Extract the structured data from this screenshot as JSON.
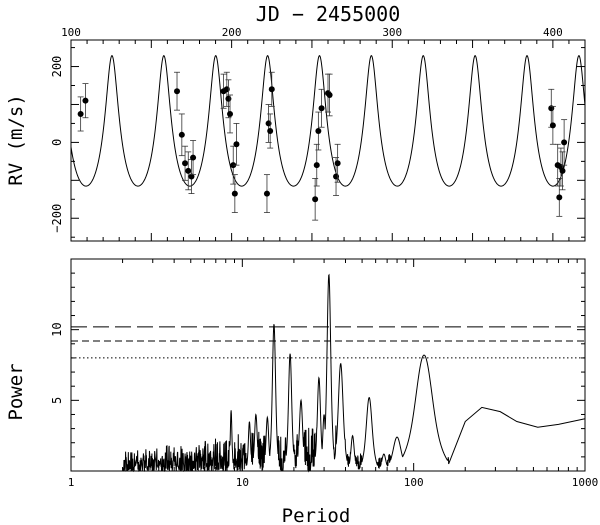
{
  "chart_data": [
    {
      "type": "scatter",
      "title": "JD − 2455000",
      "xlabel": "JD − 2455000",
      "ylabel": "RV (m/s)",
      "xlim": [
        100,
        420
      ],
      "ylim": [
        -260,
        270
      ],
      "x_ticks": [
        {
          "value": 100,
          "label": "100"
        },
        {
          "value": 200,
          "label": "200"
        },
        {
          "value": 300,
          "label": "300"
        },
        {
          "value": 400,
          "label": "400"
        }
      ],
      "y_ticks": [
        {
          "value": 200,
          "label": "200"
        },
        {
          "value": 0,
          "label": "0"
        },
        {
          "value": -200,
          "label": "−200"
        }
      ],
      "model": {
        "period_days": 32.3,
        "semi_amplitude": 172,
        "eccentricity": 0.33,
        "omega_deg": 0,
        "peri_time": 125.5,
        "offset": 0
      },
      "points": [
        {
          "x": 106,
          "y": 75,
          "err": 45
        },
        {
          "x": 109,
          "y": 110,
          "err": 45
        },
        {
          "x": 166,
          "y": 135,
          "err": 50
        },
        {
          "x": 169,
          "y": 20,
          "err": 55
        },
        {
          "x": 171,
          "y": -55,
          "err": 45
        },
        {
          "x": 173,
          "y": -75,
          "err": 50
        },
        {
          "x": 175,
          "y": -90,
          "err": 45
        },
        {
          "x": 176,
          "y": -40,
          "err": 45
        },
        {
          "x": 195,
          "y": 135,
          "err": 45
        },
        {
          "x": 197,
          "y": 140,
          "err": 45
        },
        {
          "x": 198,
          "y": 115,
          "err": 50
        },
        {
          "x": 199,
          "y": 75,
          "err": 50
        },
        {
          "x": 201,
          "y": -60,
          "err": 50
        },
        {
          "x": 202,
          "y": -135,
          "err": 50
        },
        {
          "x": 203,
          "y": -5,
          "err": 55
        },
        {
          "x": 222,
          "y": -135,
          "err": 50
        },
        {
          "x": 223,
          "y": 50,
          "err": 50
        },
        {
          "x": 224,
          "y": 30,
          "err": 45
        },
        {
          "x": 225,
          "y": 140,
          "err": 45
        },
        {
          "x": 252,
          "y": -150,
          "err": 55
        },
        {
          "x": 253,
          "y": -60,
          "err": 55
        },
        {
          "x": 254,
          "y": 30,
          "err": 50
        },
        {
          "x": 256,
          "y": 90,
          "err": 50
        },
        {
          "x": 260,
          "y": 130,
          "err": 50
        },
        {
          "x": 261,
          "y": 125,
          "err": 55
        },
        {
          "x": 265,
          "y": -90,
          "err": 50
        },
        {
          "x": 266,
          "y": -55,
          "err": 50
        },
        {
          "x": 399,
          "y": 90,
          "err": 50
        },
        {
          "x": 400,
          "y": 45,
          "err": 50
        },
        {
          "x": 403,
          "y": -60,
          "err": 55
        },
        {
          "x": 404,
          "y": -145,
          "err": 50
        },
        {
          "x": 405,
          "y": -65,
          "err": 50
        },
        {
          "x": 406,
          "y": -75,
          "err": 50
        },
        {
          "x": 407,
          "y": 0,
          "err": 60
        }
      ]
    },
    {
      "type": "line",
      "xlabel": "Period",
      "ylabel": "Power",
      "xscale": "log",
      "xlim": [
        1,
        1000
      ],
      "ylim": [
        0,
        15
      ],
      "x_ticks": [
        {
          "value": 1,
          "label": "1"
        },
        {
          "value": 10,
          "label": "10"
        },
        {
          "value": 100,
          "label": "100"
        },
        {
          "value": 1000,
          "label": "1000"
        }
      ],
      "y_ticks": [
        {
          "value": 5,
          "label": "5"
        },
        {
          "value": 10,
          "label": "10"
        }
      ],
      "thresholds": [
        {
          "value": 10.2,
          "style": "long-dash"
        },
        {
          "value": 9.2,
          "style": "dash"
        },
        {
          "value": 8.0,
          "style": "dot"
        }
      ],
      "series": [
        {
          "peaks": [
            {
              "period": 15.3,
              "power": 10.4,
              "width": 0.012
            },
            {
              "period": 19.0,
              "power": 8.3,
              "width": 0.012
            },
            {
              "period": 22.0,
              "power": 5.0,
              "width": 0.012
            },
            {
              "period": 28.0,
              "power": 6.6,
              "width": 0.012
            },
            {
              "period": 30.0,
              "power": 4.0,
              "width": 0.01
            },
            {
              "period": 32.0,
              "power": 13.9,
              "width": 0.014
            },
            {
              "period": 37.5,
              "power": 7.6,
              "width": 0.018
            },
            {
              "period": 44.0,
              "power": 2.5,
              "width": 0.012
            },
            {
              "period": 55.0,
              "power": 5.2,
              "width": 0.022
            },
            {
              "period": 67.0,
              "power": 1.2,
              "width": 0.015
            },
            {
              "period": 80.0,
              "power": 2.4,
              "width": 0.03
            },
            {
              "period": 115.0,
              "power": 8.2,
              "width": 0.065
            },
            {
              "period": 160.0,
              "power": 0.8,
              "width": 0.03
            },
            {
              "period": 14.0,
              "power": 3.8,
              "width": 0.01
            },
            {
              "period": 12.0,
              "power": 4.0,
              "width": 0.01
            },
            {
              "period": 11.0,
              "power": 3.5,
              "width": 0.008
            },
            {
              "period": 8.6,
              "power": 4.3,
              "width": 0.006
            }
          ],
          "tail": [
            {
              "period": 160,
              "power": 0.5
            },
            {
              "period": 200,
              "power": 3.5
            },
            {
              "period": 250,
              "power": 4.5
            },
            {
              "period": 320,
              "power": 4.2
            },
            {
              "period": 400,
              "power": 3.5
            },
            {
              "period": 530,
              "power": 3.1
            },
            {
              "period": 700,
              "power": 3.3
            },
            {
              "period": 1000,
              "power": 3.7
            }
          ]
        }
      ]
    }
  ]
}
